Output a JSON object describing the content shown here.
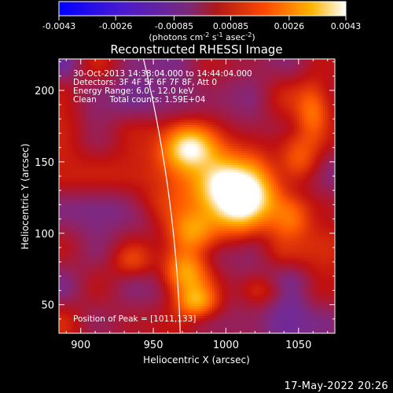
{
  "chart_data": {
    "type": "heatmap",
    "title": "Reconstructed RHESSI Image",
    "xlabel": "Heliocentric X (arcsec)",
    "ylabel": "Heliocentric Y (arcsec)",
    "xlim": [
      885,
      1075
    ],
    "ylim": [
      30,
      222
    ],
    "xticks": [
      900,
      950,
      1000,
      1050
    ],
    "yticks": [
      50,
      100,
      150,
      200
    ],
    "colorbar": {
      "label": "(photons cm",
      "exp_a": "-2",
      "label_mid": " s",
      "exp_b": "-1",
      "label_end": " asec",
      "exp_c": "-2",
      "label_close": ")",
      "ticks": [
        "-0.0043",
        "-0.0026",
        "-0.00085",
        "0.00085",
        "0.0026",
        "0.0043"
      ],
      "range": [
        -0.0043,
        0.0043
      ],
      "colors": [
        "#0000ff",
        "#5020c8",
        "#7a2a8a",
        "#c01010",
        "#ff5a00",
        "#ffb000",
        "#ffffff"
      ]
    },
    "info_lines": [
      "30-Oct-2013 14:38:04.000 to 14:44:04.000",
      "Detectors: 3F 4F 5F 6F 7F 8F, Att 0",
      "Energy Range: 6.0 - 12.0 keV",
      "Clean     Total counts: 1.59E+04"
    ],
    "peak_label": "Position of Peak = [1011,133]",
    "peak": [
      1011,
      133
    ],
    "limb_arcsec": 969,
    "sources": [
      {
        "x": 1011,
        "y": 133,
        "amp": 1.0,
        "sx": 18,
        "sy": 16
      },
      {
        "x": 975,
        "y": 160,
        "amp": 0.85,
        "sx": 13,
        "sy": 11
      },
      {
        "x": 995,
        "y": 118,
        "amp": 0.6,
        "sx": 20,
        "sy": 16
      },
      {
        "x": 977,
        "y": 100,
        "amp": 0.45,
        "sx": 12,
        "sy": 10
      },
      {
        "x": 972,
        "y": 72,
        "amp": 0.7,
        "sx": 11,
        "sy": 12
      },
      {
        "x": 980,
        "y": 52,
        "amp": 0.55,
        "sx": 10,
        "sy": 8
      },
      {
        "x": 1050,
        "y": 150,
        "amp": 0.45,
        "sx": 10,
        "sy": 12
      },
      {
        "x": 1060,
        "y": 185,
        "amp": 0.4,
        "sx": 8,
        "sy": 14
      },
      {
        "x": 1045,
        "y": 110,
        "amp": 0.3,
        "sx": 9,
        "sy": 9
      },
      {
        "x": 935,
        "y": 80,
        "amp": 0.25,
        "sx": 10,
        "sy": 8
      },
      {
        "x": 950,
        "y": 120,
        "amp": 0.18,
        "sx": 12,
        "sy": 9
      },
      {
        "x": 1025,
        "y": 60,
        "amp": 0.25,
        "sx": 11,
        "sy": 8
      }
    ]
  },
  "footer": {
    "date": "17-May-2022 20:26"
  }
}
